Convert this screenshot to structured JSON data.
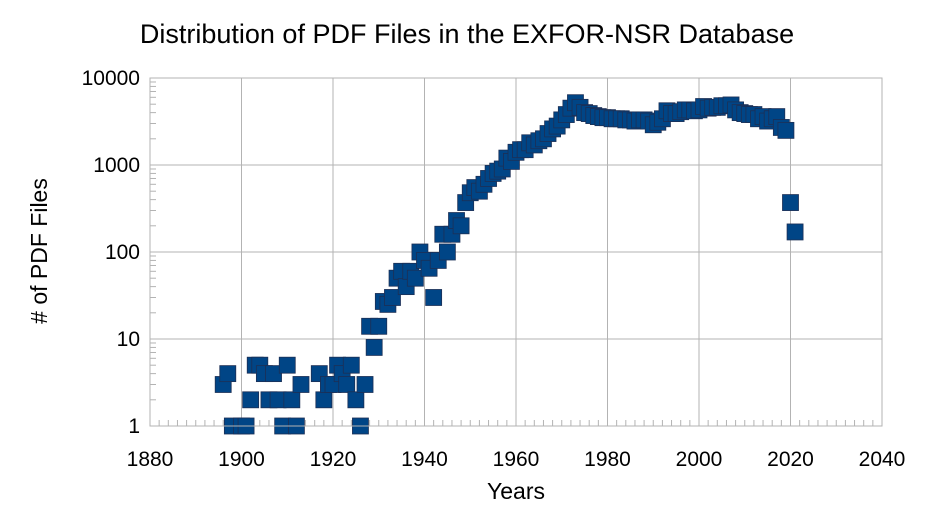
{
  "chart_data": {
    "type": "scatter",
    "title": "Distribution of PDF Files in the EXFOR-NSR Database",
    "xlabel": "Years",
    "ylabel": "# of PDF Files",
    "xlim": [
      1880,
      2040
    ],
    "ylim": [
      1,
      10000
    ],
    "yscale": "log",
    "grid": true,
    "legend": "none",
    "marker_color": "#004586",
    "x_ticks": [
      "1880",
      "1900",
      "1920",
      "1940",
      "1960",
      "1980",
      "2000",
      "2020",
      "2040"
    ],
    "y_ticks": [
      "1",
      "10",
      "100",
      "1000",
      "10000"
    ],
    "points": [
      [
        1896,
        3
      ],
      [
        1897,
        4
      ],
      [
        1898,
        1
      ],
      [
        1900,
        1
      ],
      [
        1901,
        1
      ],
      [
        1902,
        2
      ],
      [
        1903,
        5
      ],
      [
        1904,
        5
      ],
      [
        1905,
        4
      ],
      [
        1906,
        2
      ],
      [
        1907,
        4
      ],
      [
        1908,
        2
      ],
      [
        1909,
        1
      ],
      [
        1910,
        5
      ],
      [
        1911,
        2
      ],
      [
        1912,
        1
      ],
      [
        1913,
        3
      ],
      [
        1917,
        4
      ],
      [
        1918,
        2
      ],
      [
        1919,
        3
      ],
      [
        1920,
        3
      ],
      [
        1921,
        5
      ],
      [
        1922,
        4
      ],
      [
        1923,
        3
      ],
      [
        1924,
        5
      ],
      [
        1925,
        2
      ],
      [
        1926,
        1
      ],
      [
        1927,
        3
      ],
      [
        1928,
        14
      ],
      [
        1929,
        8
      ],
      [
        1930,
        14
      ],
      [
        1931,
        27
      ],
      [
        1932,
        25
      ],
      [
        1933,
        30
      ],
      [
        1934,
        50
      ],
      [
        1935,
        60
      ],
      [
        1936,
        40
      ],
      [
        1937,
        60
      ],
      [
        1938,
        50
      ],
      [
        1939,
        100
      ],
      [
        1940,
        80
      ],
      [
        1941,
        65
      ],
      [
        1942,
        30
      ],
      [
        1943,
        80
      ],
      [
        1944,
        160
      ],
      [
        1945,
        100
      ],
      [
        1946,
        160
      ],
      [
        1947,
        230
      ],
      [
        1948,
        200
      ],
      [
        1949,
        370
      ],
      [
        1950,
        480
      ],
      [
        1951,
        550
      ],
      [
        1952,
        500
      ],
      [
        1953,
        600
      ],
      [
        1954,
        700
      ],
      [
        1955,
        800
      ],
      [
        1956,
        850
      ],
      [
        1957,
        900
      ],
      [
        1958,
        1200
      ],
      [
        1959,
        1100
      ],
      [
        1960,
        1400
      ],
      [
        1961,
        1500
      ],
      [
        1962,
        1500
      ],
      [
        1963,
        1800
      ],
      [
        1964,
        1700
      ],
      [
        1965,
        1900
      ],
      [
        1966,
        2000
      ],
      [
        1967,
        2300
      ],
      [
        1968,
        2600
      ],
      [
        1969,
        2800
      ],
      [
        1970,
        3300
      ],
      [
        1971,
        3800
      ],
      [
        1972,
        4500
      ],
      [
        1973,
        5200
      ],
      [
        1974,
        4600
      ],
      [
        1975,
        4000
      ],
      [
        1976,
        3900
      ],
      [
        1977,
        3700
      ],
      [
        1978,
        3600
      ],
      [
        1979,
        3500
      ],
      [
        1980,
        3500
      ],
      [
        1981,
        3400
      ],
      [
        1982,
        3400
      ],
      [
        1983,
        3400
      ],
      [
        1984,
        3300
      ],
      [
        1985,
        3300
      ],
      [
        1986,
        3200
      ],
      [
        1987,
        3300
      ],
      [
        1988,
        3300
      ],
      [
        1989,
        3200
      ],
      [
        1990,
        2900
      ],
      [
        1991,
        3100
      ],
      [
        1992,
        3400
      ],
      [
        1993,
        4200
      ],
      [
        1994,
        3900
      ],
      [
        1995,
        3900
      ],
      [
        1996,
        4100
      ],
      [
        1997,
        4300
      ],
      [
        1998,
        4300
      ],
      [
        1999,
        4200
      ],
      [
        2000,
        4300
      ],
      [
        2001,
        4700
      ],
      [
        2002,
        4500
      ],
      [
        2003,
        4600
      ],
      [
        2004,
        4600
      ],
      [
        2005,
        4800
      ],
      [
        2006,
        4800
      ],
      [
        2007,
        4900
      ],
      [
        2008,
        4300
      ],
      [
        2009,
        4000
      ],
      [
        2010,
        3900
      ],
      [
        2011,
        3800
      ],
      [
        2012,
        3800
      ],
      [
        2013,
        3400
      ],
      [
        2014,
        3600
      ],
      [
        2015,
        3200
      ],
      [
        2016,
        3400
      ],
      [
        2017,
        3600
      ],
      [
        2018,
        2700
      ],
      [
        2019,
        2500
      ],
      [
        2020,
        370
      ],
      [
        2021,
        170
      ]
    ]
  }
}
